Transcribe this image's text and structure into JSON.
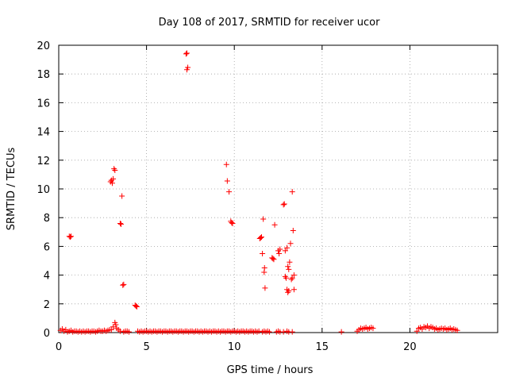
{
  "chart_data": {
    "type": "scatter",
    "title": "Day 108 of 2017, SRMTID for receiver ucor",
    "xlabel": "GPS time / hours",
    "ylabel": "SRMTID / TECUs",
    "xlim": [
      0,
      25
    ],
    "ylim": [
      0,
      20
    ],
    "x_ticks": [
      0,
      5,
      10,
      15,
      20
    ],
    "y_ticks": [
      0,
      2,
      4,
      6,
      8,
      10,
      12,
      14,
      16,
      18,
      20
    ],
    "x_tick_labels": [
      "0",
      "5",
      "10",
      "15",
      "20"
    ],
    "y_tick_labels": [
      "0",
      "2",
      "4",
      "6",
      "8",
      "10",
      "12",
      "14",
      "16",
      "18",
      "20"
    ],
    "grid": true,
    "marker": "+",
    "color": "#ff0000",
    "series": [
      {
        "name": "SRMTID",
        "points": [
          [
            0.1,
            0.15
          ],
          [
            0.2,
            0.25
          ],
          [
            0.3,
            0.1
          ],
          [
            0.4,
            0.2
          ],
          [
            0.5,
            0.05
          ],
          [
            0.6,
            0.1
          ],
          [
            0.7,
            0.15
          ],
          [
            0.8,
            0.05
          ],
          [
            0.9,
            0.1
          ],
          [
            1.0,
            0.1
          ],
          [
            1.1,
            0.05
          ],
          [
            1.2,
            0.1
          ],
          [
            1.3,
            0.05
          ],
          [
            1.4,
            0.1
          ],
          [
            1.5,
            0.05
          ],
          [
            1.6,
            0.1
          ],
          [
            1.7,
            0.1
          ],
          [
            1.8,
            0.05
          ],
          [
            1.9,
            0.1
          ],
          [
            2.0,
            0.1
          ],
          [
            2.1,
            0.05
          ],
          [
            2.2,
            0.1
          ],
          [
            2.3,
            0.15
          ],
          [
            2.4,
            0.1
          ],
          [
            2.5,
            0.1
          ],
          [
            2.6,
            0.15
          ],
          [
            2.7,
            0.1
          ],
          [
            2.8,
            0.15
          ],
          [
            2.9,
            0.2
          ],
          [
            3.0,
            0.2
          ],
          [
            3.1,
            0.4
          ],
          [
            3.2,
            0.7
          ],
          [
            3.25,
            0.55
          ],
          [
            3.3,
            0.3
          ],
          [
            3.4,
            0.2
          ],
          [
            3.5,
            0.1
          ],
          [
            3.7,
            0.05
          ],
          [
            3.8,
            0.1
          ],
          [
            3.9,
            0.1
          ],
          [
            4.0,
            0.05
          ],
          [
            4.5,
            0.1
          ],
          [
            4.6,
            0.05
          ],
          [
            4.7,
            0.1
          ],
          [
            4.8,
            0.05
          ],
          [
            4.9,
            0.1
          ],
          [
            5.0,
            0.1
          ],
          [
            5.1,
            0.05
          ],
          [
            5.2,
            0.1
          ],
          [
            5.3,
            0.05
          ],
          [
            5.4,
            0.1
          ],
          [
            5.5,
            0.1
          ],
          [
            5.6,
            0.05
          ],
          [
            5.7,
            0.1
          ],
          [
            5.8,
            0.1
          ],
          [
            5.9,
            0.05
          ],
          [
            6.0,
            0.1
          ],
          [
            6.1,
            0.1
          ],
          [
            6.2,
            0.05
          ],
          [
            6.3,
            0.1
          ],
          [
            6.4,
            0.1
          ],
          [
            6.5,
            0.05
          ],
          [
            6.6,
            0.1
          ],
          [
            6.7,
            0.1
          ],
          [
            6.8,
            0.05
          ],
          [
            6.9,
            0.1
          ],
          [
            7.0,
            0.1
          ],
          [
            7.1,
            0.05
          ],
          [
            7.2,
            0.1
          ],
          [
            7.3,
            0.1
          ],
          [
            7.4,
            0.05
          ],
          [
            7.5,
            0.1
          ],
          [
            7.6,
            0.1
          ],
          [
            7.7,
            0.05
          ],
          [
            7.8,
            0.1
          ],
          [
            7.9,
            0.1
          ],
          [
            8.0,
            0.05
          ],
          [
            8.1,
            0.1
          ],
          [
            8.2,
            0.05
          ],
          [
            8.3,
            0.1
          ],
          [
            8.4,
            0.1
          ],
          [
            8.5,
            0.05
          ],
          [
            8.6,
            0.1
          ],
          [
            8.7,
            0.05
          ],
          [
            8.8,
            0.1
          ],
          [
            8.9,
            0.1
          ],
          [
            9.0,
            0.05
          ],
          [
            9.1,
            0.1
          ],
          [
            9.2,
            0.05
          ],
          [
            9.3,
            0.1
          ],
          [
            9.4,
            0.1
          ],
          [
            9.5,
            0.05
          ],
          [
            9.6,
            0.1
          ],
          [
            9.7,
            0.1
          ],
          [
            9.8,
            0.05
          ],
          [
            9.9,
            0.1
          ],
          [
            10.0,
            0.1
          ],
          [
            10.1,
            0.05
          ],
          [
            10.2,
            0.1
          ],
          [
            10.3,
            0.05
          ],
          [
            10.4,
            0.1
          ],
          [
            10.5,
            0.1
          ],
          [
            10.6,
            0.05
          ],
          [
            10.7,
            0.1
          ],
          [
            10.8,
            0.05
          ],
          [
            10.9,
            0.1
          ],
          [
            11.0,
            0.1
          ],
          [
            11.1,
            0.05
          ],
          [
            11.2,
            0.1
          ],
          [
            11.3,
            0.05
          ],
          [
            11.4,
            0.1
          ],
          [
            11.6,
            0.05
          ],
          [
            11.7,
            0.1
          ],
          [
            11.8,
            0.05
          ],
          [
            11.9,
            0.1
          ],
          [
            12.0,
            0.05
          ],
          [
            12.4,
            0.05
          ],
          [
            12.5,
            0.1
          ],
          [
            12.6,
            0.05
          ],
          [
            12.8,
            0.05
          ],
          [
            13.0,
            0.1
          ],
          [
            13.1,
            0.05
          ],
          [
            13.3,
            0.05
          ],
          [
            16.1,
            0.05
          ],
          [
            17.0,
            0.1
          ],
          [
            17.1,
            0.2
          ],
          [
            17.2,
            0.3
          ],
          [
            17.3,
            0.25
          ],
          [
            17.4,
            0.3
          ],
          [
            17.5,
            0.35
          ],
          [
            17.6,
            0.25
          ],
          [
            17.7,
            0.3
          ],
          [
            17.8,
            0.35
          ],
          [
            17.9,
            0.3
          ],
          [
            20.4,
            0.1
          ],
          [
            20.5,
            0.3
          ],
          [
            20.6,
            0.35
          ],
          [
            20.7,
            0.25
          ],
          [
            20.8,
            0.4
          ],
          [
            20.9,
            0.35
          ],
          [
            21.0,
            0.45
          ],
          [
            21.1,
            0.3
          ],
          [
            21.2,
            0.4
          ],
          [
            21.3,
            0.35
          ],
          [
            21.4,
            0.25
          ],
          [
            21.5,
            0.3
          ],
          [
            21.6,
            0.2
          ],
          [
            21.7,
            0.25
          ],
          [
            21.8,
            0.3
          ],
          [
            21.9,
            0.25
          ],
          [
            22.0,
            0.3
          ],
          [
            22.1,
            0.2
          ],
          [
            22.2,
            0.25
          ],
          [
            22.3,
            0.3
          ],
          [
            22.4,
            0.2
          ],
          [
            22.5,
            0.25
          ],
          [
            22.6,
            0.2
          ],
          [
            22.7,
            0.15
          ],
          [
            0.6,
            6.7
          ],
          [
            0.65,
            6.65
          ],
          [
            0.7,
            6.7
          ],
          [
            2.95,
            10.5
          ],
          [
            3.0,
            10.6
          ],
          [
            3.05,
            10.4
          ],
          [
            3.1,
            10.7
          ],
          [
            3.15,
            11.4
          ],
          [
            3.2,
            11.3
          ],
          [
            3.5,
            7.6
          ],
          [
            3.55,
            7.55
          ],
          [
            3.6,
            9.5
          ],
          [
            3.65,
            3.3
          ],
          [
            3.7,
            3.35
          ],
          [
            4.35,
            1.9
          ],
          [
            4.4,
            1.85
          ],
          [
            4.45,
            1.8
          ],
          [
            7.25,
            19.4
          ],
          [
            7.3,
            19.45
          ],
          [
            7.3,
            18.3
          ],
          [
            7.35,
            18.45
          ],
          [
            9.55,
            11.7
          ],
          [
            9.6,
            10.55
          ],
          [
            9.7,
            9.8
          ],
          [
            9.8,
            7.75
          ],
          [
            9.85,
            7.65
          ],
          [
            9.9,
            7.6
          ],
          [
            11.45,
            6.55
          ],
          [
            11.5,
            6.6
          ],
          [
            11.55,
            6.65
          ],
          [
            11.6,
            5.5
          ],
          [
            11.65,
            7.9
          ],
          [
            11.7,
            4.2
          ],
          [
            11.72,
            4.5
          ],
          [
            11.75,
            3.1
          ],
          [
            12.15,
            5.2
          ],
          [
            12.2,
            5.15
          ],
          [
            12.25,
            5.1
          ],
          [
            12.3,
            7.5
          ],
          [
            12.5,
            5.7
          ],
          [
            12.55,
            5.5
          ],
          [
            12.6,
            5.8
          ],
          [
            12.8,
            8.9
          ],
          [
            12.85,
            8.95
          ],
          [
            12.9,
            3.9
          ],
          [
            12.95,
            3.8
          ],
          [
            12.9,
            5.7
          ],
          [
            13.0,
            5.9
          ],
          [
            13.05,
            4.6
          ],
          [
            13.1,
            4.4
          ],
          [
            13.0,
            3.0
          ],
          [
            13.05,
            2.8
          ],
          [
            13.1,
            2.9
          ],
          [
            13.15,
            4.9
          ],
          [
            13.2,
            6.2
          ],
          [
            13.25,
            3.7
          ],
          [
            13.3,
            3.8
          ],
          [
            13.35,
            7.1
          ],
          [
            13.3,
            9.8
          ],
          [
            13.4,
            4.0
          ],
          [
            13.4,
            3.0
          ]
        ]
      }
    ]
  }
}
